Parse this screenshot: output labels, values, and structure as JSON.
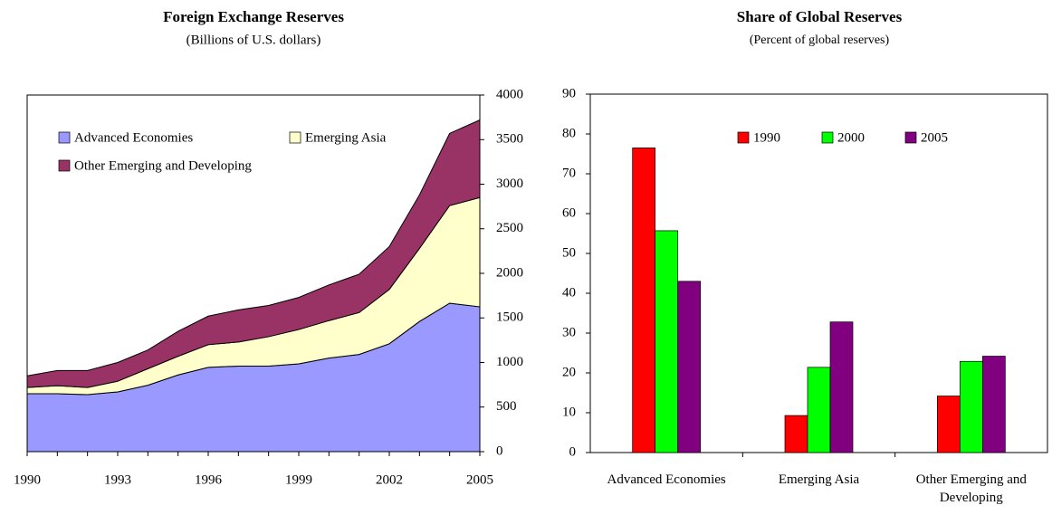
{
  "chart_data": [
    {
      "type": "area",
      "stacked": true,
      "title": "Foreign Exchange Reserves",
      "subtitle": "(Billions of U.S. dollars)",
      "x": [
        1990,
        1991,
        1992,
        1993,
        1994,
        1995,
        1996,
        1997,
        1998,
        1999,
        2000,
        2001,
        2002,
        2003,
        2004,
        2005
      ],
      "xlim": [
        1990,
        2005
      ],
      "xticks": [
        1990,
        1993,
        1996,
        1999,
        2002,
        2005
      ],
      "ylim": [
        0,
        4000
      ],
      "yticks": [
        0,
        500,
        1000,
        1500,
        2000,
        2500,
        3000,
        3500,
        4000
      ],
      "y_axis_side": "right",
      "series": [
        {
          "name": "Advanced Economies",
          "color": "#9999ff",
          "values": [
            650,
            650,
            640,
            670,
            745,
            860,
            945,
            960,
            960,
            985,
            1050,
            1090,
            1210,
            1460,
            1665,
            1625
          ]
        },
        {
          "name": "Emerging Asia",
          "color": "#ffffcc",
          "values": [
            70,
            90,
            80,
            120,
            185,
            210,
            255,
            270,
            330,
            385,
            420,
            470,
            610,
            820,
            1095,
            1225
          ]
        },
        {
          "name": "Other Emerging and Developing",
          "color": "#993366",
          "values": [
            130,
            170,
            190,
            210,
            210,
            280,
            320,
            360,
            350,
            360,
            400,
            430,
            480,
            600,
            810,
            870
          ]
        }
      ]
    },
    {
      "type": "bar",
      "title": "Share of Global Reserves",
      "subtitle": "(Percent of global reserves)",
      "categories": [
        "Advanced Economies",
        "Emerging Asia",
        "Other Emerging and Developing"
      ],
      "ylim": [
        0,
        90
      ],
      "yticks": [
        0,
        10,
        20,
        30,
        40,
        50,
        60,
        70,
        80,
        90
      ],
      "series": [
        {
          "name": "1990",
          "color": "#ff0000",
          "values": [
            76.5,
            9.3,
            14.2
          ]
        },
        {
          "name": "2000",
          "color": "#00ff00",
          "values": [
            55.7,
            21.4,
            22.9
          ]
        },
        {
          "name": "2005",
          "color": "#800080",
          "values": [
            43,
            32.8,
            24.2
          ]
        }
      ]
    }
  ]
}
